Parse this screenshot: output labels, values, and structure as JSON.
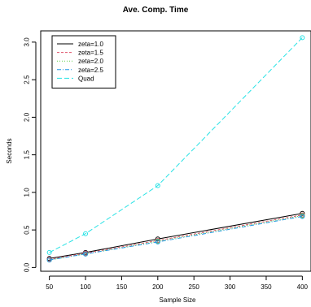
{
  "chart_data": {
    "type": "line",
    "title": "Ave. Comp. Time",
    "xlabel": "Sample Size",
    "ylabel": "Seconds",
    "x": [
      50,
      100,
      200,
      400
    ],
    "xlim": [
      38,
      412
    ],
    "ylim": [
      -0.05,
      3.15
    ],
    "xticks": [
      50,
      100,
      150,
      200,
      250,
      300,
      350,
      400
    ],
    "yticks": [
      0.0,
      0.5,
      1.0,
      1.5,
      2.0,
      2.5,
      3.0
    ],
    "ytick_labels": [
      "0.0",
      "0.5",
      "1.0",
      "1.5",
      "2.0",
      "2.5",
      "3.0"
    ],
    "legend_position": "top-left",
    "grid": false,
    "series": [
      {
        "name": "zeta=1.0",
        "values": [
          0.12,
          0.2,
          0.38,
          0.72
        ],
        "color": "#000000",
        "dash": ""
      },
      {
        "name": "zeta=1.5",
        "values": [
          0.11,
          0.19,
          0.36,
          0.7
        ],
        "color": "#df536b",
        "dash": "3,2"
      },
      {
        "name": "zeta=2.0",
        "values": [
          0.1,
          0.18,
          0.35,
          0.69
        ],
        "color": "#61d04f",
        "dash": "1,2"
      },
      {
        "name": "zeta=2.5",
        "values": [
          0.1,
          0.18,
          0.34,
          0.68
        ],
        "color": "#2297e6",
        "dash": "5,2,1,2"
      },
      {
        "name": "Quad",
        "values": [
          0.2,
          0.45,
          1.09,
          3.06
        ],
        "color": "#28e2e5",
        "dash": "6,3"
      }
    ]
  }
}
